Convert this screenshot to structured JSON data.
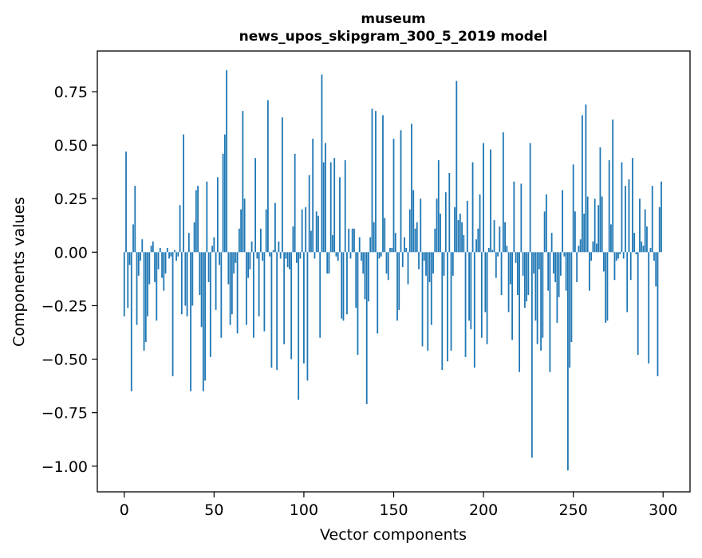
{
  "chart_data": {
    "type": "bar",
    "title": "museum",
    "subtitle": "news_upos_skipgram_300_5_2019 model",
    "xlabel": "Vector components",
    "ylabel": "Components values",
    "xlim": [
      -15,
      315
    ],
    "ylim": [
      -1.12,
      0.94
    ],
    "xticks": [
      0,
      50,
      100,
      150,
      200,
      250,
      300
    ],
    "yticks": [
      -1.0,
      -0.75,
      -0.5,
      -0.25,
      0.0,
      0.25,
      0.5,
      0.75
    ],
    "xtick_labels": [
      "0",
      "50",
      "100",
      "150",
      "200",
      "250",
      "300"
    ],
    "ytick_labels": [
      "−1.00",
      "−0.75",
      "−0.50",
      "−0.25",
      "0.00",
      "0.25",
      "0.50",
      "0.75"
    ],
    "grid": false,
    "bar_color": "#1f77b4",
    "x": "0..299",
    "values": [
      -0.3,
      0.47,
      -0.26,
      -0.06,
      -0.65,
      0.13,
      0.31,
      -0.34,
      -0.11,
      -0.04,
      0.06,
      -0.46,
      -0.42,
      -0.3,
      -0.15,
      0.03,
      0.05,
      -0.14,
      -0.32,
      -0.08,
      0.02,
      -0.12,
      -0.18,
      -0.1,
      0.02,
      -0.03,
      -0.02,
      -0.58,
      0.01,
      -0.04,
      -0.02,
      0.22,
      -0.29,
      0.55,
      -0.25,
      -0.3,
      0.09,
      -0.65,
      -0.25,
      0.14,
      0.29,
      0.31,
      -0.2,
      -0.35,
      -0.65,
      -0.6,
      0.33,
      -0.14,
      -0.49,
      0.03,
      0.07,
      -0.27,
      0.35,
      -0.06,
      -0.4,
      0.46,
      0.55,
      0.85,
      -0.15,
      -0.34,
      -0.29,
      -0.1,
      -0.05,
      -0.38,
      0.11,
      0.2,
      0.66,
      0.25,
      -0.34,
      -0.12,
      -0.08,
      0.05,
      -0.4,
      0.44,
      -0.03,
      -0.3,
      0.11,
      -0.04,
      -0.37,
      0.2,
      0.71,
      -0.02,
      -0.54,
      0.01,
      0.23,
      -0.55,
      0.05,
      -0.03,
      0.63,
      -0.43,
      -0.03,
      -0.07,
      -0.08,
      -0.5,
      0.12,
      0.46,
      -0.05,
      -0.69,
      -0.03,
      0.2,
      -0.52,
      0.21,
      -0.6,
      0.36,
      0.1,
      0.53,
      -0.03,
      0.19,
      0.17,
      -0.4,
      0.83,
      0.42,
      0.51,
      -0.1,
      -0.1,
      0.42,
      0.08,
      0.44,
      -0.02,
      -0.04,
      0.35,
      -0.31,
      -0.32,
      0.43,
      -0.29,
      0.11,
      -0.03,
      0.11,
      0.11,
      -0.26,
      -0.48,
      0.07,
      -0.04,
      -0.1,
      -0.22,
      -0.71,
      -0.23,
      0.07,
      0.67,
      0.14,
      0.66,
      -0.38,
      -0.03,
      -0.02,
      0.64,
      0.16,
      -0.1,
      -0.13,
      0.02,
      0.02,
      0.53,
      0.09,
      -0.32,
      -0.27,
      0.57,
      -0.07,
      0.07,
      0.02,
      -0.15,
      0.2,
      0.6,
      0.29,
      0.11,
      0.14,
      -0.08,
      0.25,
      -0.44,
      -0.04,
      -0.11,
      -0.46,
      -0.14,
      -0.34,
      -0.1,
      0.11,
      0.25,
      0.43,
      0.18,
      -0.55,
      -0.11,
      0.28,
      -0.51,
      0.37,
      -0.46,
      -0.11,
      0.21,
      0.8,
      0.15,
      0.18,
      0.14,
      0.08,
      -0.49,
      0.24,
      -0.32,
      -0.36,
      0.42,
      -0.54,
      0.06,
      0.11,
      0.27,
      -0.4,
      0.51,
      -0.28,
      -0.43,
      0.02,
      0.48,
      0.01,
      0.15,
      -0.12,
      -0.02,
      0.12,
      -0.2,
      0.56,
      0.14,
      0.03,
      -0.28,
      -0.15,
      -0.41,
      0.33,
      -0.05,
      -0.2,
      -0.56,
      0.32,
      -0.11,
      -0.26,
      -0.23,
      -0.2,
      0.51,
      -0.96,
      -0.1,
      -0.32,
      -0.43,
      -0.08,
      -0.46,
      -0.4,
      0.19,
      0.27,
      -0.18,
      -0.56,
      0.09,
      -0.1,
      -0.14,
      -0.33,
      -0.21,
      -0.11,
      0.29,
      -0.02,
      -0.18,
      -1.02,
      -0.54,
      -0.42,
      0.41,
      0.19,
      -0.14,
      0.03,
      0.06,
      0.64,
      0.18,
      0.69,
      0.26,
      -0.18,
      -0.04,
      0.05,
      0.25,
      0.04,
      0.22,
      0.49,
      0.26,
      -0.09,
      -0.33,
      -0.32,
      0.43,
      0.13,
      0.62,
      -0.13,
      -0.04,
      -0.03,
      -0.01,
      0.42,
      -0.03,
      0.31,
      -0.28,
      0.34,
      -0.13,
      0.44,
      0.09,
      -0.01,
      -0.48,
      0.25,
      0.05,
      0.03,
      0.2,
      0.12,
      -0.52,
      0.02,
      0.31,
      -0.04,
      -0.16,
      -0.58,
      0.21,
      0.33
    ]
  }
}
